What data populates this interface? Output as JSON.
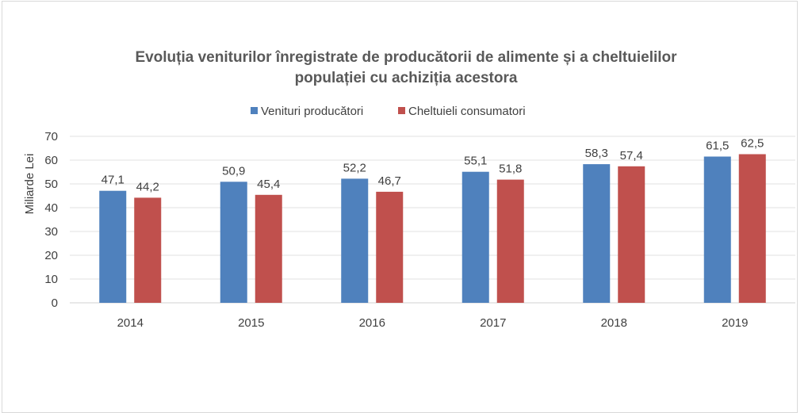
{
  "chart_data": {
    "type": "bar",
    "title_lines": [
      "Evoluția veniturilor înregistrate de producătorii de alimente și a cheltuielilor",
      "populației cu achiziția acestora"
    ],
    "xlabel": "",
    "ylabel": "Miliarde Lei",
    "ylim": [
      0,
      70
    ],
    "yticks": [
      0,
      10,
      20,
      30,
      40,
      50,
      60,
      70
    ],
    "grid": true,
    "legend_position": "top",
    "categories": [
      "2014",
      "2015",
      "2016",
      "2017",
      "2018",
      "2019"
    ],
    "series": [
      {
        "name": "Venituri producători",
        "color": "#4f81bd",
        "values": [
          47.1,
          50.9,
          52.2,
          55.1,
          58.3,
          61.5
        ],
        "labels": [
          "47,1",
          "50,9",
          "52,2",
          "55,1",
          "58,3",
          "61,5"
        ]
      },
      {
        "name": "Cheltuieli consumatori",
        "color": "#c0504d",
        "values": [
          44.2,
          45.4,
          46.7,
          51.8,
          57.4,
          62.5
        ],
        "labels": [
          "44,2",
          "45,4",
          "46,7",
          "51,8",
          "57,4",
          "62,5"
        ]
      }
    ]
  }
}
